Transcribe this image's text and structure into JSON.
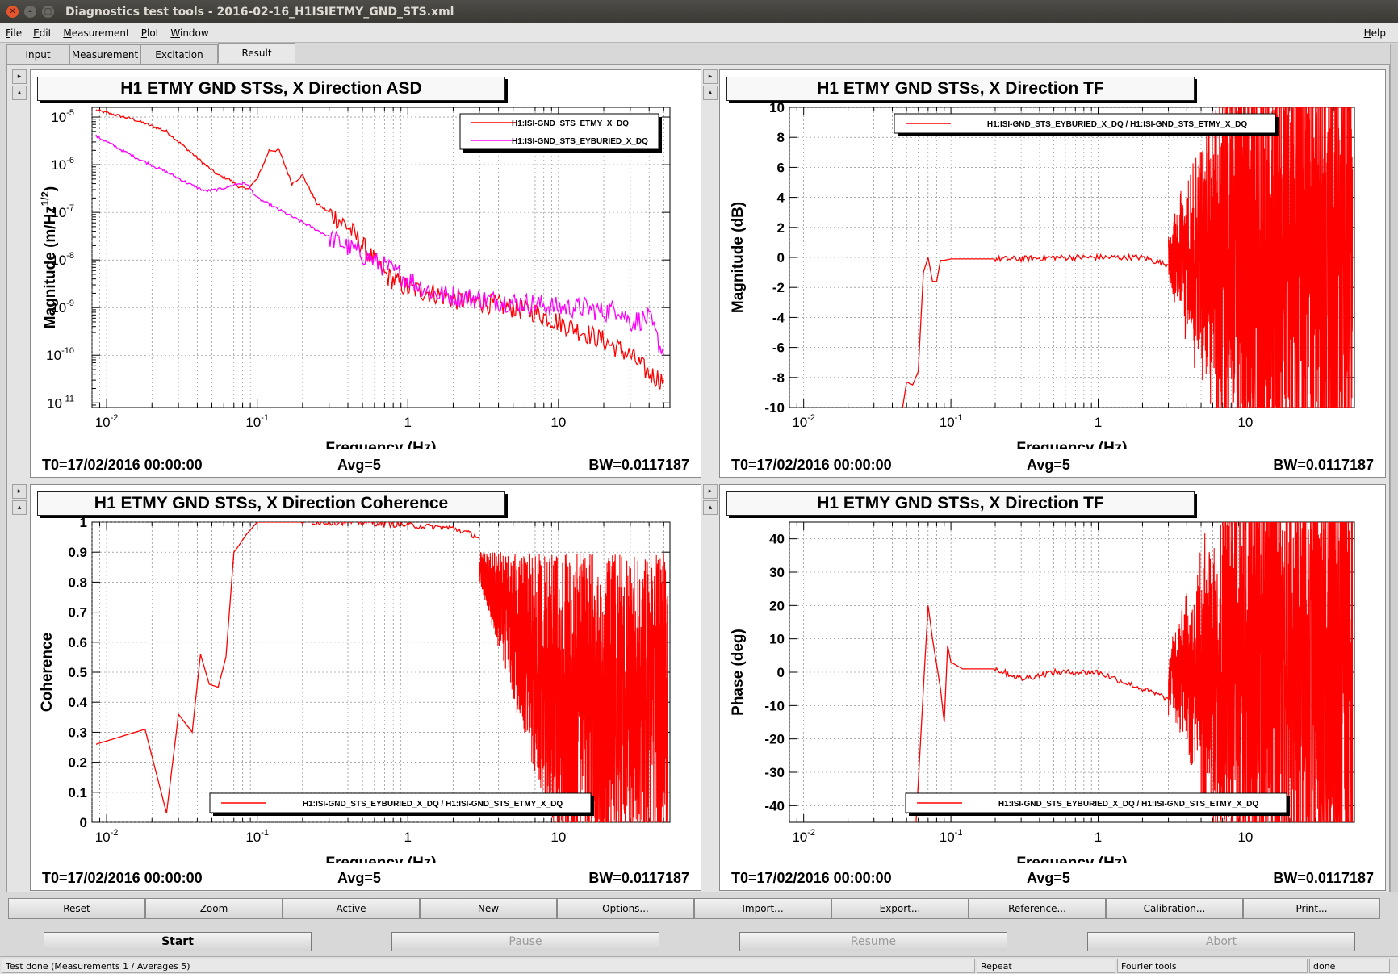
{
  "window": {
    "title": "Diagnostics test tools - 2016-02-16_H1ISIETMY_GND_STS.xml"
  },
  "menu": {
    "items": [
      {
        "u": "F",
        "rest": "ile"
      },
      {
        "u": "E",
        "rest": "dit"
      },
      {
        "u": "M",
        "rest": "easurement"
      },
      {
        "u": "P",
        "rest": "lot"
      },
      {
        "u": "W",
        "rest": "indow"
      }
    ],
    "help": {
      "u": "H",
      "rest": "elp"
    }
  },
  "tabs": [
    "Input",
    "Measurement",
    "Excitation",
    "Result"
  ],
  "active_tab": "Result",
  "panels": [
    {
      "title": "H1 ETMY GND STSs, X Direction ASD",
      "t0": "T0=17/02/2016 00:00:00",
      "avg": "Avg=5",
      "bw": "BW=0.0117187",
      "chart_data": {
        "type": "line",
        "xlabel": "Frequency (Hz)",
        "ylabel": "Magnitude (m/Hz^1/2)",
        "xscale": "log",
        "yscale": "log",
        "xlim": [
          0.008,
          55
        ],
        "ylim": [
          8e-12,
          1.6e-05
        ],
        "xticks": [
          {
            "v": 0.01,
            "label": "10",
            "exp": "-2"
          },
          {
            "v": 0.1,
            "label": "10",
            "exp": "-1"
          },
          {
            "v": 1,
            "label": "1",
            "exp": ""
          },
          {
            "v": 10,
            "label": "10",
            "exp": ""
          }
        ],
        "yticks": [
          {
            "v": 1e-05,
            "exp": "-5"
          },
          {
            "v": 1e-06,
            "exp": "-6"
          },
          {
            "v": 1e-07,
            "exp": "-7"
          },
          {
            "v": 1e-08,
            "exp": "-8"
          },
          {
            "v": 1e-09,
            "exp": "-9"
          },
          {
            "v": 1e-10,
            "exp": "-10"
          },
          {
            "v": 1e-11,
            "exp": "-11"
          }
        ],
        "legend": "top-right",
        "series": [
          {
            "name": "H1:ISI-GND_STS_ETMY_X_DQ",
            "color": "#ff0000",
            "x": [
              0.0085,
              0.015,
              0.025,
              0.035,
              0.045,
              0.055,
              0.065,
              0.075,
              0.085,
              0.1,
              0.12,
              0.14,
              0.17,
              0.2,
              0.25,
              0.3,
              0.4,
              0.5,
              0.7,
              1,
              1.5,
              2,
              3,
              5,
              7,
              10,
              15,
              20,
              30,
              40,
              50
            ],
            "y": [
              1.4e-05,
              9e-06,
              5e-06,
              2e-06,
              1e-06,
              6e-07,
              5e-07,
              3.5e-07,
              3e-07,
              5e-07,
              2e-06,
              2e-06,
              4e-07,
              6e-07,
              1.5e-07,
              1e-07,
              5e-08,
              2e-08,
              5e-09,
              2.5e-09,
              2e-09,
              1.5e-09,
              1.3e-09,
              1e-09,
              8e-10,
              5e-10,
              3e-10,
              2e-10,
              1e-10,
              4e-11,
              3e-11
            ]
          },
          {
            "name": "H1:ISI-GND_STS_EYBURIED_X_DQ",
            "color": "#ff00ff",
            "x": [
              0.0085,
              0.015,
              0.025,
              0.035,
              0.045,
              0.055,
              0.065,
              0.075,
              0.085,
              0.1,
              1.5,
              3,
              5,
              7,
              10,
              15,
              20,
              25,
              30,
              40,
              50
            ],
            "y": [
              4e-06,
              1.5e-06,
              7e-07,
              4e-07,
              2.8e-07,
              3e-07,
              3.5e-07,
              4e-07,
              4e-07,
              2e-07,
              2e-09,
              1.5e-09,
              1.3e-09,
              1.2e-09,
              1e-09,
              1e-09,
              8e-10,
              1e-09,
              5e-10,
              6e-10,
              1e-10
            ]
          }
        ]
      }
    },
    {
      "title": "H1 ETMY GND STSs, X Direction TF",
      "t0": "T0=17/02/2016 00:00:00",
      "avg": "Avg=5",
      "bw": "BW=0.0117187",
      "chart_data": {
        "type": "line",
        "xlabel": "Frequency (Hz)",
        "ylabel": "Magnitude (dB)",
        "xscale": "log",
        "yscale": "linear",
        "xlim": [
          0.008,
          55
        ],
        "ylim": [
          -10,
          10
        ],
        "xticks": [
          {
            "v": 0.01,
            "label": "10",
            "exp": "-2"
          },
          {
            "v": 0.1,
            "label": "10",
            "exp": "-1"
          },
          {
            "v": 1,
            "label": "1",
            "exp": ""
          },
          {
            "v": 10,
            "label": "10",
            "exp": ""
          }
        ],
        "yticks": [
          {
            "v": 10,
            "label": "10"
          },
          {
            "v": 8,
            "label": "8"
          },
          {
            "v": 6,
            "label": "6"
          },
          {
            "v": 4,
            "label": "4"
          },
          {
            "v": 2,
            "label": "2"
          },
          {
            "v": 0,
            "label": "0"
          },
          {
            "v": -2,
            "label": "-2"
          },
          {
            "v": -4,
            "label": "-4"
          },
          {
            "v": -6,
            "label": "-6"
          },
          {
            "v": -8,
            "label": "-8"
          },
          {
            "v": -10,
            "label": "-10"
          }
        ],
        "legend": "top",
        "series": [
          {
            "name": "H1:ISI-GND_STS_EYBURIED_X_DQ / H1:ISI-GND_STS_ETMY_X_DQ",
            "color": "#ff0000",
            "x": [
              0.047,
              0.05,
              0.055,
              0.06,
              0.065,
              0.07,
              0.075,
              0.08,
              0.085,
              0.09,
              0.1,
              0.15,
              0.3,
              0.5,
              1,
              2,
              3
            ],
            "y": [
              -10,
              -8.3,
              -8.5,
              -7.6,
              -1,
              0,
              -1.6,
              -1.6,
              -0.2,
              -0.2,
              -0.1,
              -0.1,
              -0.1,
              0,
              0,
              0,
              -0.5
            ]
          }
        ],
        "noise_from": 3
      }
    },
    {
      "title": "H1 ETMY GND STSs, X Direction Coherence",
      "t0": "T0=17/02/2016 00:00:00",
      "avg": "Avg=5",
      "bw": "BW=0.0117187",
      "chart_data": {
        "type": "line",
        "xlabel": "Frequency (Hz)",
        "ylabel": "Coherence",
        "xscale": "log",
        "yscale": "linear",
        "xlim": [
          0.008,
          55
        ],
        "ylim": [
          0,
          1
        ],
        "xticks": [
          {
            "v": 0.01,
            "label": "10",
            "exp": "-2"
          },
          {
            "v": 0.1,
            "label": "10",
            "exp": "-1"
          },
          {
            "v": 1,
            "label": "1",
            "exp": ""
          },
          {
            "v": 10,
            "label": "10",
            "exp": ""
          }
        ],
        "yticks": [
          {
            "v": 1,
            "label": "1"
          },
          {
            "v": 0.9,
            "label": "0.9"
          },
          {
            "v": 0.8,
            "label": "0.8"
          },
          {
            "v": 0.7,
            "label": "0.7"
          },
          {
            "v": 0.6,
            "label": "0.6"
          },
          {
            "v": 0.5,
            "label": "0.5"
          },
          {
            "v": 0.4,
            "label": "0.4"
          },
          {
            "v": 0.3,
            "label": "0.3"
          },
          {
            "v": 0.2,
            "label": "0.2"
          },
          {
            "v": 0.1,
            "label": "0.1"
          },
          {
            "v": 0,
            "label": "0"
          }
        ],
        "legend": "bottom",
        "series": [
          {
            "name": "H1:ISI-GND_STS_EYBURIED_X_DQ / H1:ISI-GND_STS_ETMY_X_DQ",
            "color": "#ff0000",
            "x": [
              0.0085,
              0.018,
              0.025,
              0.03,
              0.037,
              0.042,
              0.048,
              0.055,
              0.062,
              0.07,
              0.075,
              0.085,
              0.1,
              0.12,
              0.2,
              0.5,
              1,
              2,
              3
            ],
            "y": [
              0.26,
              0.31,
              0.03,
              0.36,
              0.3,
              0.56,
              0.46,
              0.45,
              0.55,
              0.9,
              0.92,
              0.96,
              1,
              1,
              1,
              1,
              0.99,
              0.98,
              0.95
            ]
          }
        ],
        "noise_from": 3
      }
    },
    {
      "title": "H1 ETMY GND STSs, X Direction TF",
      "t0": "T0=17/02/2016 00:00:00",
      "avg": "Avg=5",
      "bw": "BW=0.0117187",
      "chart_data": {
        "type": "line",
        "xlabel": "Frequency (Hz)",
        "ylabel": "Phase (deg)",
        "xscale": "log",
        "yscale": "linear",
        "xlim": [
          0.008,
          55
        ],
        "ylim": [
          -45,
          45
        ],
        "xticks": [
          {
            "v": 0.01,
            "label": "10",
            "exp": "-2"
          },
          {
            "v": 0.1,
            "label": "10",
            "exp": "-1"
          },
          {
            "v": 1,
            "label": "1",
            "exp": ""
          },
          {
            "v": 10,
            "label": "10",
            "exp": ""
          }
        ],
        "yticks": [
          {
            "v": 40,
            "label": "40"
          },
          {
            "v": 30,
            "label": "30"
          },
          {
            "v": 20,
            "label": "20"
          },
          {
            "v": 10,
            "label": "10"
          },
          {
            "v": 0,
            "label": "0"
          },
          {
            "v": -10,
            "label": "-10"
          },
          {
            "v": -20,
            "label": "-20"
          },
          {
            "v": -30,
            "label": "-30"
          },
          {
            "v": -40,
            "label": "-40"
          }
        ],
        "legend": "bottom",
        "series": [
          {
            "name": "H1:ISI-GND_STS_EYBURIED_X_DQ / H1:ISI-GND_STS_ETMY_X_DQ",
            "color": "#ff0000",
            "x": [
              0.058,
              0.065,
              0.07,
              0.075,
              0.085,
              0.09,
              0.095,
              0.1,
              0.12,
              0.2,
              0.3,
              0.5,
              1,
              1.5,
              2,
              3
            ],
            "y": [
              -45,
              -5,
              20,
              10,
              -5,
              -15,
              8,
              3,
              1,
              1,
              -2,
              0,
              0,
              -3,
              -5,
              -8
            ]
          }
        ],
        "noise_from": 3
      }
    }
  ],
  "toolbar": [
    "Reset",
    "Zoom",
    "Active",
    "New",
    "Options...",
    "Import...",
    "Export...",
    "Reference...",
    "Calibration...",
    "Print..."
  ],
  "actions": [
    {
      "label": "Start",
      "enabled": true
    },
    {
      "label": "Pause",
      "enabled": false
    },
    {
      "label": "Resume",
      "enabled": false
    },
    {
      "label": "Abort",
      "enabled": false
    }
  ],
  "status": {
    "message": "Test done (Measurements 1 / Averages 5)",
    "repeat": "Repeat",
    "tool": "Fourier tools",
    "state": "done"
  },
  "colors": {
    "trace_red": "#ff0000",
    "trace_magenta": "#ff00ff"
  }
}
